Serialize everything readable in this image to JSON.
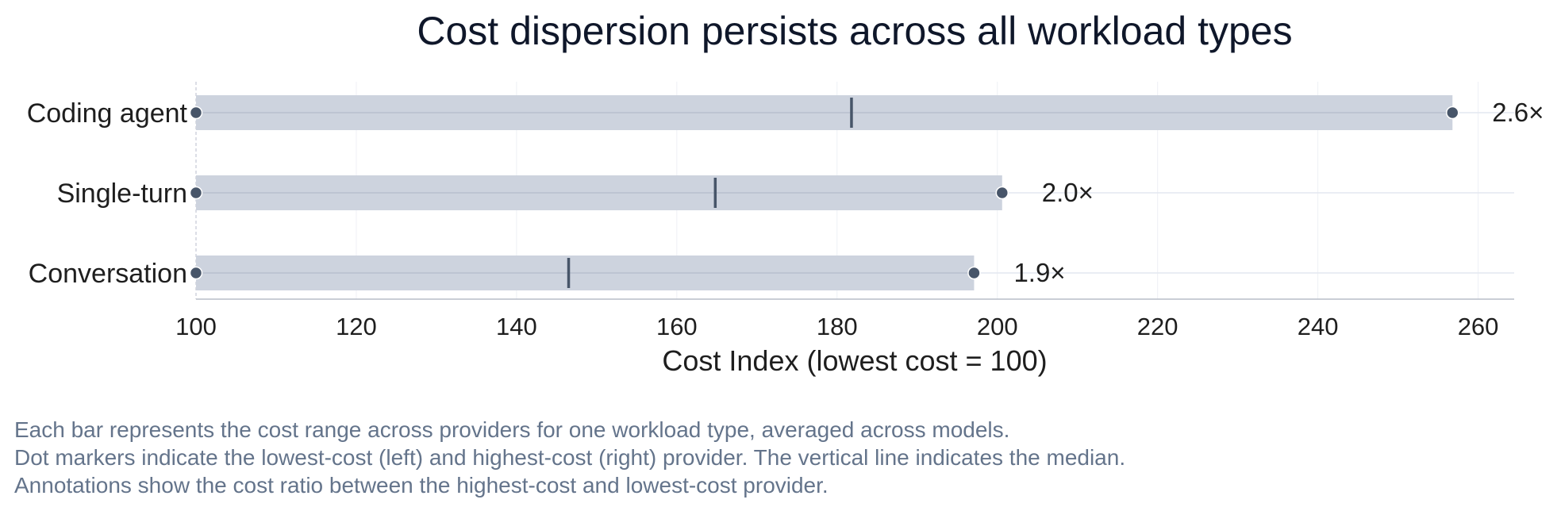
{
  "chart_data": {
    "type": "range-bar",
    "title": "Cost dispersion persists across all workload types",
    "xlabel": "Cost Index (lowest cost = 100)",
    "ylabel": "",
    "xlim": [
      100,
      264.5
    ],
    "x_ticks": [
      100,
      120,
      140,
      160,
      180,
      200,
      220,
      240,
      260
    ],
    "grid": true,
    "categories": [
      "Coding agent",
      "Single-turn",
      "Conversation"
    ],
    "series": [
      {
        "category": "Coding agent",
        "low": 100,
        "median": 181.8,
        "high": 256.8,
        "ratio_label": "2.6×"
      },
      {
        "category": "Single-turn",
        "low": 100,
        "median": 164.8,
        "high": 200.6,
        "ratio_label": "2.0×"
      },
      {
        "category": "Conversation",
        "low": 100,
        "median": 146.5,
        "high": 197.1,
        "ratio_label": "1.9×"
      }
    ],
    "colors": {
      "bar": "#cdd3de",
      "marker": "#475569",
      "median_line": "#475569",
      "title": "#0f172a",
      "text": "#1e1e1e",
      "grid": "#eef0f5",
      "note": "#64748b"
    }
  },
  "notes": [
    "Each bar represents the cost range across providers for one workload type, averaged across models.",
    "Dot markers indicate the lowest-cost (left) and highest-cost (right) provider. The vertical line indicates the median.",
    "Annotations show the cost ratio between the highest-cost and lowest-cost provider."
  ]
}
